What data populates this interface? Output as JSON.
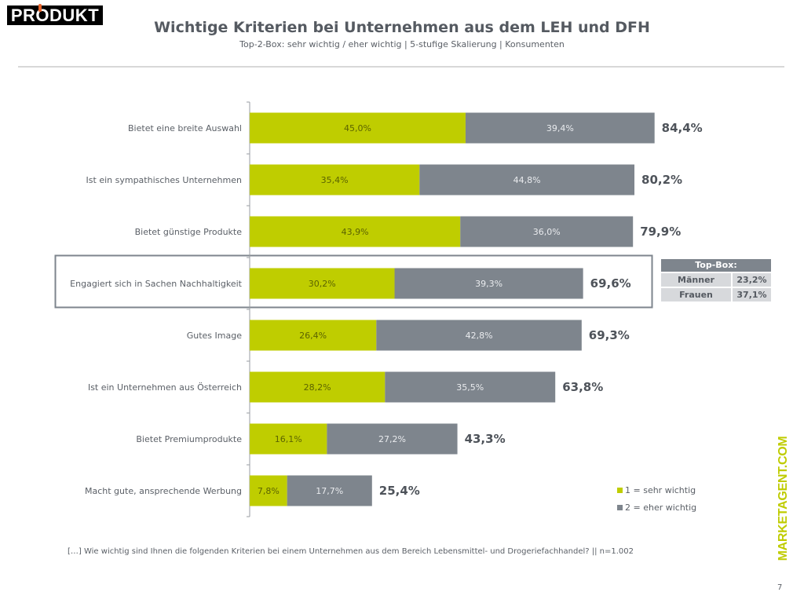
{
  "header": {
    "logo_text": "PRODUKT",
    "title": "Wichtige Kriterien bei Unternehmen aus dem LEH und DFH",
    "subtitle": "Top-2-Box: sehr wichtig / eher wichtig | 5-stufige Skalierung | Konsumenten"
  },
  "colors": {
    "sehr_wichtig": "#bfcd00",
    "eher_wichtig": "#7e858d",
    "text": "#5a5f66",
    "highlight_border": "#7e858d"
  },
  "chart_data": {
    "type": "bar",
    "orientation": "horizontal",
    "stacked": true,
    "title": "Wichtige Kriterien bei Unternehmen aus dem LEH und DFH",
    "subtitle": "Top-2-Box: sehr wichtig / eher wichtig | 5-stufige Skalierung | Konsumenten",
    "xlabel": "",
    "ylabel": "",
    "xlim": [
      0,
      100
    ],
    "grid": false,
    "legend_position": "bottom-right",
    "categories": [
      "Bietet eine breite Auswahl",
      "Ist ein sympathisches Unternehmen",
      "Bietet günstige Produkte",
      "Engagiert sich in Sachen Nachhaltigkeit",
      "Gutes Image",
      "Ist ein Unternehmen aus Österreich",
      "Bietet Premiumprodukte",
      "Macht gute, ansprechende Werbung"
    ],
    "series": [
      {
        "name": "1 = sehr wichtig",
        "values": [
          45.0,
          35.4,
          43.9,
          30.2,
          26.4,
          28.2,
          16.1,
          7.8
        ],
        "labels": [
          "45,0%",
          "35,4%",
          "43,9%",
          "30,2%",
          "26,4%",
          "28,2%",
          "16,1%",
          "7,8%"
        ]
      },
      {
        "name": "2 = eher wichtig",
        "values": [
          39.4,
          44.8,
          36.0,
          39.3,
          42.8,
          35.5,
          27.2,
          17.7
        ],
        "labels": [
          "39,4%",
          "44,8%",
          "36,0%",
          "39,3%",
          "42,8%",
          "35,5%",
          "27,2%",
          "17,7%"
        ]
      }
    ],
    "totals": [
      84.4,
      80.2,
      79.9,
      69.6,
      69.3,
      63.8,
      43.3,
      25.4
    ],
    "total_labels": [
      "84,4%",
      "80,2%",
      "79,9%",
      "69,6%",
      "69,3%",
      "63,8%",
      "43,3%",
      "25,4%"
    ],
    "highlighted_category_index": 3
  },
  "topbox_table": {
    "header": "Top-Box:",
    "rows": [
      {
        "label": "Männer",
        "value": "23,2%"
      },
      {
        "label": "Frauen",
        "value": "37,1%"
      }
    ]
  },
  "legend": {
    "items": [
      "1 = sehr wichtig",
      "2 = eher wichtig"
    ]
  },
  "footnote": "[…] Wie wichtig sind Ihnen die folgenden Kriterien bei einem Unternehmen aus dem Bereich Lebensmittel- und Drogeriefachhandel? || n=1.002",
  "brand": "MARKETAGENT.COM",
  "page_number": "7"
}
